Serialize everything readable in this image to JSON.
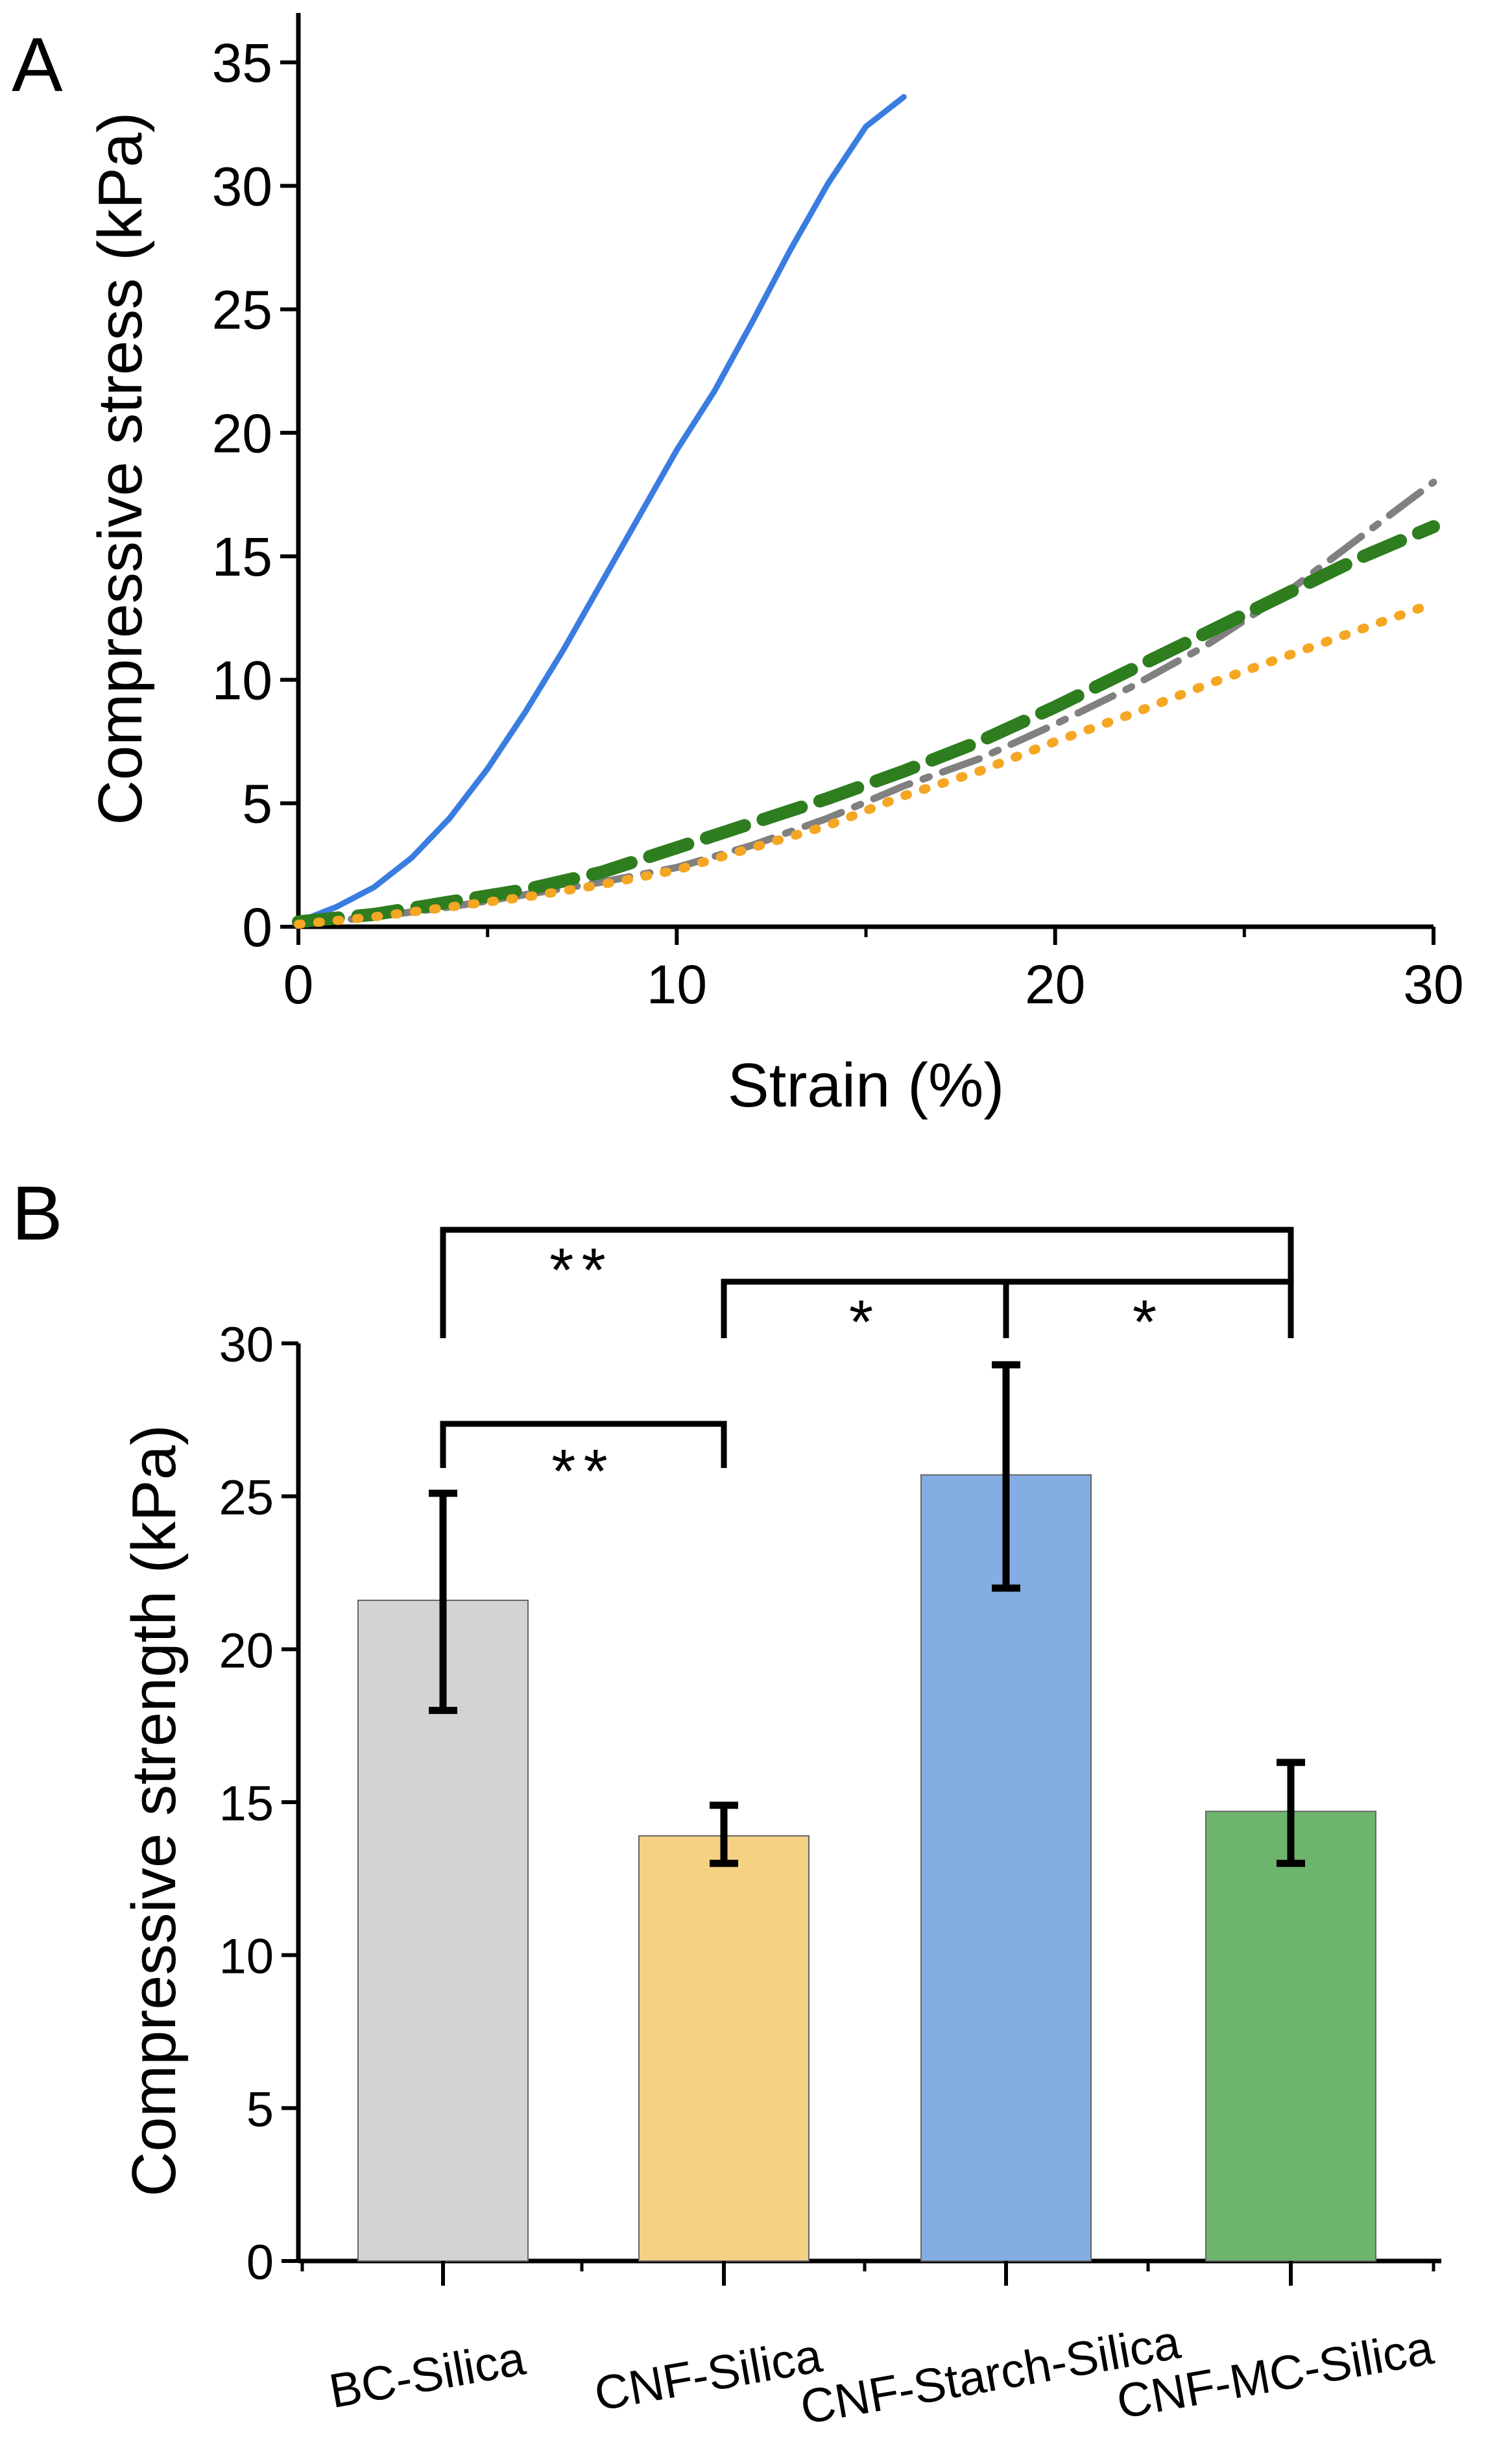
{
  "panel_a": {
    "panel_label": "A",
    "chart_data": {
      "type": "line",
      "title": "",
      "xlabel": "Strain (%)",
      "ylabel": "Compressive stress (kPa)",
      "xlim": [
        0,
        30
      ],
      "ylim": [
        0,
        37
      ],
      "xticks": [
        0,
        10,
        20,
        30
      ],
      "yticks": [
        0,
        5,
        10,
        15,
        20,
        25,
        30,
        35
      ],
      "grid": false,
      "legend": "none",
      "series": [
        {
          "name": "CNF-Starch-Silica",
          "color": "#3a7de0",
          "style": "solid",
          "x": [
            0,
            1,
            2,
            3,
            4,
            5,
            6,
            7,
            8,
            9,
            10,
            11,
            12,
            13,
            14,
            15,
            16
          ],
          "y": [
            0.2,
            0.8,
            1.6,
            2.8,
            4.4,
            6.4,
            8.7,
            11.2,
            13.9,
            16.6,
            19.3,
            21.7,
            24.5,
            27.4,
            30.1,
            32.4,
            33.6
          ]
        },
        {
          "name": "BC-Silica",
          "color": "#808080",
          "style": "dashdot",
          "x": [
            0,
            2,
            4,
            6,
            8,
            10,
            12,
            14,
            16,
            18,
            20,
            22,
            24,
            26,
            28,
            30
          ],
          "y": [
            0.1,
            0.4,
            0.8,
            1.3,
            1.8,
            2.4,
            3.3,
            4.4,
            5.7,
            6.8,
            8.2,
            9.7,
            11.4,
            13.4,
            15.7,
            18.0
          ]
        },
        {
          "name": "CNF-MC-Silica",
          "color": "#2e7d1f",
          "style": "dash",
          "x": [
            0,
            2,
            4,
            6,
            8,
            10,
            12,
            14,
            16,
            18,
            20,
            22,
            24,
            26,
            28,
            30
          ],
          "y": [
            0.2,
            0.5,
            1.0,
            1.5,
            2.2,
            3.2,
            4.2,
            5.2,
            6.3,
            7.5,
            8.9,
            10.4,
            11.9,
            13.4,
            14.9,
            16.2
          ]
        },
        {
          "name": "CNF-Silica",
          "color": "#f5a623",
          "style": "dot",
          "x": [
            0,
            2,
            4,
            6,
            8,
            10,
            12,
            14,
            16,
            18,
            20,
            22,
            24,
            26,
            28,
            30
          ],
          "y": [
            0.1,
            0.4,
            0.8,
            1.2,
            1.7,
            2.3,
            3.2,
            4.1,
            5.3,
            6.3,
            7.5,
            8.6,
            9.8,
            10.9,
            12.0,
            13.1
          ]
        }
      ]
    }
  },
  "panel_b": {
    "panel_label": "B",
    "chart_data": {
      "type": "bar",
      "title": "",
      "xlabel": "",
      "ylabel": "Compressive strength (kPa)",
      "ylim": [
        0,
        30
      ],
      "yticks": [
        0,
        5,
        10,
        15,
        20,
        25,
        30
      ],
      "grid": false,
      "legend": "none",
      "categories": [
        "BC-Silica",
        "CNF-Silica",
        "CNF-Starch-Silica",
        "CNF-MC-Silica"
      ],
      "values": [
        21.6,
        13.9,
        25.7,
        14.7
      ],
      "error_low": [
        18.0,
        13.0,
        22.0,
        13.0
      ],
      "error_high": [
        25.1,
        14.9,
        29.3,
        16.3
      ],
      "colors": [
        "#d3d3d3",
        "#f5d184",
        "#84aee3",
        "#6db46c"
      ],
      "significance": [
        {
          "from": 0,
          "to": 1,
          "label": "**"
        },
        {
          "from": 0,
          "to": 3,
          "label": "**"
        },
        {
          "from": 1,
          "to": 2,
          "label": "*"
        },
        {
          "from": 2,
          "to": 3,
          "label": "*"
        }
      ]
    }
  }
}
